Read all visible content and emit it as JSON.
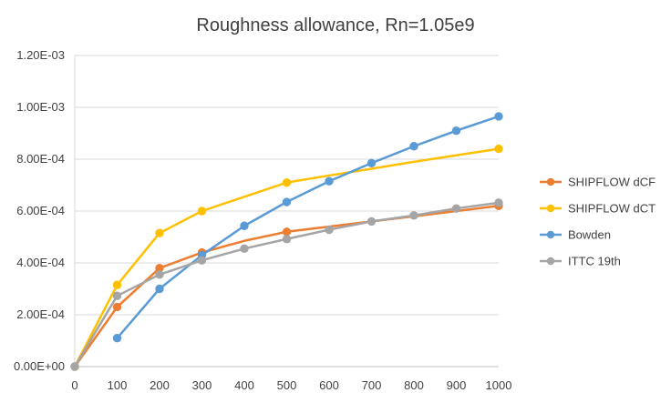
{
  "chart_data": {
    "type": "line",
    "title": "Roughness allowance, Rn=1.05e9",
    "xlabel": "",
    "ylabel": "",
    "x": [
      0,
      100,
      200,
      300,
      400,
      500,
      600,
      700,
      800,
      900,
      1000
    ],
    "x_ticks": [
      "0",
      "100",
      "200",
      "300",
      "400",
      "500",
      "600",
      "700",
      "800",
      "900",
      "1000"
    ],
    "y_ticks": [
      "0.00E+00",
      "2.00E-04",
      "4.00E-04",
      "6.00E-04",
      "8.00E-04",
      "1.00E-03",
      "1.20E-03"
    ],
    "xlim": [
      0,
      1000
    ],
    "ylim": [
      0,
      0.0012
    ],
    "grid": "horizontal",
    "legend_position": "right",
    "series": [
      {
        "name": "SHIPFLOW dCF",
        "color": "#ED7D31",
        "marker_x": [
          0,
          100,
          200,
          300,
          500,
          1000
        ],
        "marker_y": [
          0.0,
          0.00023,
          0.00038,
          0.00044,
          0.00052,
          0.00062
        ],
        "line_x": [
          0,
          100,
          200,
          300,
          400,
          500,
          600,
          700,
          800,
          900,
          1000
        ],
        "line_y": [
          0.0,
          0.00023,
          0.00038,
          0.00044,
          0.000485,
          0.00052,
          0.00054,
          0.00056,
          0.00058,
          0.0006,
          0.00062
        ]
      },
      {
        "name": "SHIPFLOW dCT",
        "color": "#FFC000",
        "marker_x": [
          0,
          100,
          200,
          300,
          500,
          1000
        ],
        "marker_y": [
          0.0,
          0.000315,
          0.000515,
          0.0006,
          0.00071,
          0.00084
        ],
        "line_x": [
          0,
          100,
          200,
          300,
          400,
          500,
          600,
          700,
          800,
          900,
          1000
        ],
        "line_y": [
          0.0,
          0.000315,
          0.000515,
          0.0006,
          0.000655,
          0.00071,
          0.000737,
          0.000763,
          0.00079,
          0.000815,
          0.00084
        ]
      },
      {
        "name": "Bowden",
        "color": "#5B9BD5",
        "marker_x": [
          100,
          200,
          300,
          400,
          500,
          600,
          700,
          800,
          900,
          1000
        ],
        "marker_y": [
          0.00011,
          0.0003,
          0.00043,
          0.000543,
          0.000635,
          0.000715,
          0.000785,
          0.00085,
          0.00091,
          0.000965
        ],
        "line_x": [
          100,
          200,
          300,
          400,
          500,
          600,
          700,
          800,
          900,
          1000
        ],
        "line_y": [
          0.00011,
          0.0003,
          0.00043,
          0.000543,
          0.000635,
          0.000715,
          0.000785,
          0.00085,
          0.00091,
          0.000965
        ]
      },
      {
        "name": "ITTC 19th",
        "color": "#A5A5A5",
        "marker_x": [
          0,
          100,
          200,
          300,
          400,
          500,
          600,
          700,
          800,
          900,
          1000
        ],
        "marker_y": [
          0.0,
          0.000273,
          0.000355,
          0.00041,
          0.000455,
          0.000492,
          0.000528,
          0.00056,
          0.000583,
          0.00061,
          0.000632
        ],
        "line_x": [
          0,
          100,
          200,
          300,
          400,
          500,
          600,
          700,
          800,
          900,
          1000
        ],
        "line_y": [
          0.0,
          0.000273,
          0.000355,
          0.00041,
          0.000455,
          0.000492,
          0.000528,
          0.00056,
          0.000583,
          0.00061,
          0.000632
        ]
      }
    ]
  }
}
